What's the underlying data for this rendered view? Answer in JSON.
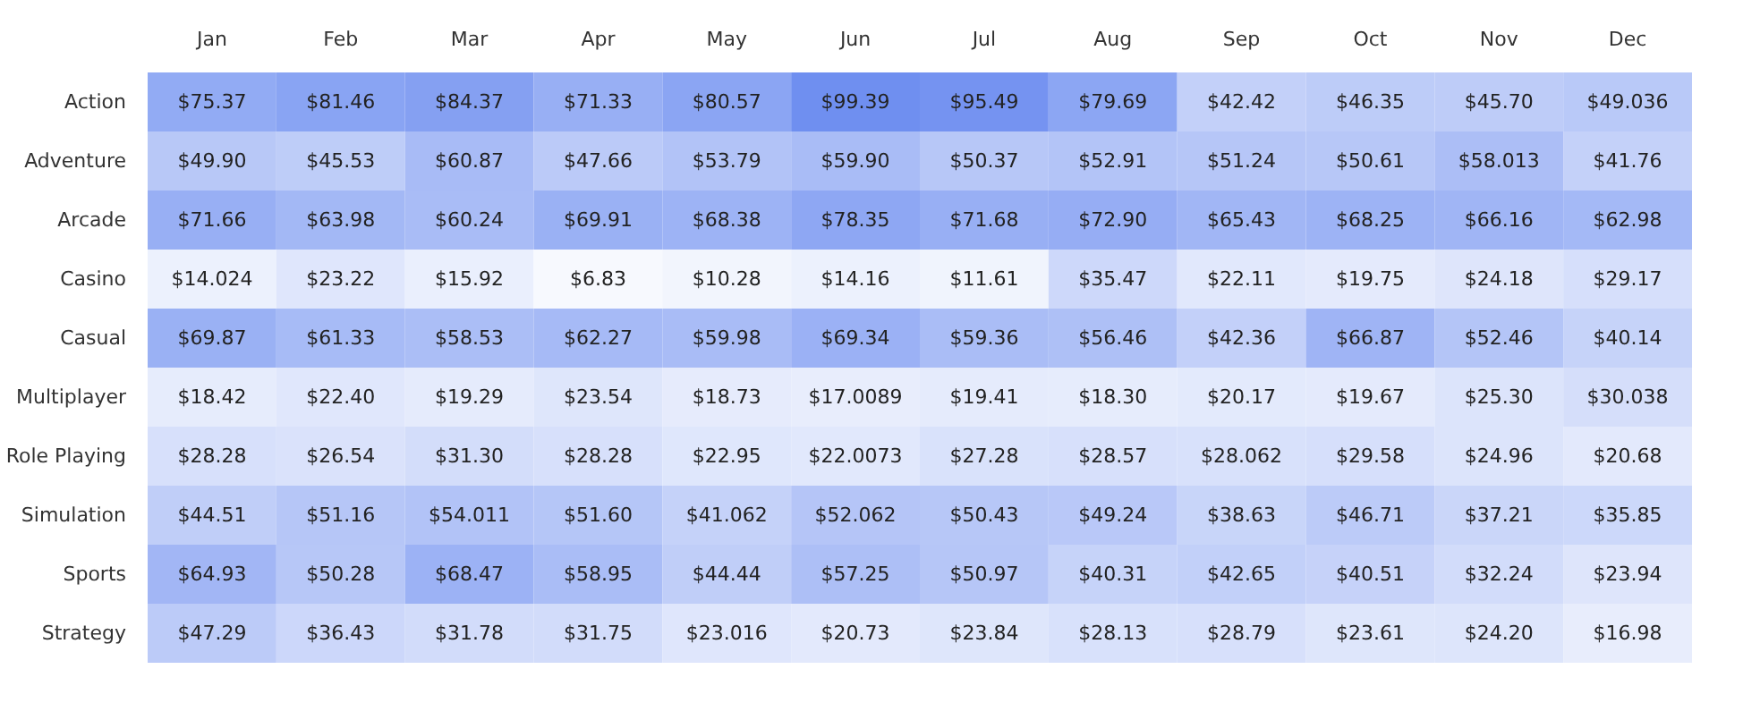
{
  "chart_data": {
    "type": "heatmap",
    "categories": [
      "Jan",
      "Feb",
      "Mar",
      "Apr",
      "May",
      "Jun",
      "Jul",
      "Aug",
      "Sep",
      "Oct",
      "Nov",
      "Dec"
    ],
    "y_categories": [
      "Action",
      "Adventure",
      "Arcade",
      "Casino",
      "Casual",
      "Multiplayer",
      "Role Playing",
      "Simulation",
      "Sports",
      "Strategy"
    ],
    "cells": [
      [
        75.37,
        81.46,
        84.37,
        71.33,
        80.57,
        99.39,
        95.49,
        79.69,
        42.42,
        46.35,
        45.7,
        49.036
      ],
      [
        49.9,
        45.53,
        60.87,
        47.66,
        53.79,
        59.9,
        50.37,
        52.91,
        51.24,
        50.61,
        58.013,
        41.76
      ],
      [
        71.66,
        63.98,
        60.24,
        69.91,
        68.38,
        78.35,
        71.68,
        72.9,
        65.43,
        68.25,
        66.16,
        62.98
      ],
      [
        14.024,
        23.22,
        15.92,
        6.83,
        10.28,
        14.16,
        11.61,
        35.47,
        22.11,
        19.75,
        24.18,
        29.17
      ],
      [
        69.87,
        61.33,
        58.53,
        62.27,
        59.98,
        69.34,
        59.36,
        56.46,
        42.36,
        66.87,
        52.46,
        40.14
      ],
      [
        18.42,
        22.4,
        19.29,
        23.54,
        18.73,
        17.0089,
        19.41,
        18.3,
        20.17,
        19.67,
        25.3,
        30.038
      ],
      [
        28.28,
        26.54,
        31.3,
        28.28,
        22.95,
        22.0073,
        27.28,
        28.57,
        28.062,
        29.58,
        24.96,
        20.68
      ],
      [
        44.51,
        51.16,
        54.011,
        51.6,
        41.062,
        52.062,
        50.43,
        49.24,
        38.63,
        46.71,
        37.21,
        35.85
      ],
      [
        64.93,
        50.28,
        68.47,
        58.95,
        44.44,
        57.25,
        50.97,
        40.31,
        42.65,
        40.51,
        32.24,
        23.94
      ],
      [
        47.29,
        36.43,
        31.78,
        31.75,
        23.016,
        20.73,
        23.84,
        28.13,
        28.79,
        23.61,
        24.2,
        16.98
      ]
    ],
    "cell_labels": [
      [
        "$75.37",
        "$81.46",
        "$84.37",
        "$71.33",
        "$80.57",
        "$99.39",
        "$95.49",
        "$79.69",
        "$42.42",
        "$46.35",
        "$45.70",
        "$49.036"
      ],
      [
        "$49.90",
        "$45.53",
        "$60.87",
        "$47.66",
        "$53.79",
        "$59.90",
        "$50.37",
        "$52.91",
        "$51.24",
        "$50.61",
        "$58.013",
        "$41.76"
      ],
      [
        "$71.66",
        "$63.98",
        "$60.24",
        "$69.91",
        "$68.38",
        "$78.35",
        "$71.68",
        "$72.90",
        "$65.43",
        "$68.25",
        "$66.16",
        "$62.98"
      ],
      [
        "$14.024",
        "$23.22",
        "$15.92",
        "$6.83",
        "$10.28",
        "$14.16",
        "$11.61",
        "$35.47",
        "$22.11",
        "$19.75",
        "$24.18",
        "$29.17"
      ],
      [
        "$69.87",
        "$61.33",
        "$58.53",
        "$62.27",
        "$59.98",
        "$69.34",
        "$59.36",
        "$56.46",
        "$42.36",
        "$66.87",
        "$52.46",
        "$40.14"
      ],
      [
        "$18.42",
        "$22.40",
        "$19.29",
        "$23.54",
        "$18.73",
        "$17.0089",
        "$19.41",
        "$18.30",
        "$20.17",
        "$19.67",
        "$25.30",
        "$30.038"
      ],
      [
        "$28.28",
        "$26.54",
        "$31.30",
        "$28.28",
        "$22.95",
        "$22.0073",
        "$27.28",
        "$28.57",
        "$28.062",
        "$29.58",
        "$24.96",
        "$20.68"
      ],
      [
        "$44.51",
        "$51.16",
        "$54.011",
        "$51.60",
        "$41.062",
        "$52.062",
        "$50.43",
        "$49.24",
        "$38.63",
        "$46.71",
        "$37.21",
        "$35.85"
      ],
      [
        "$64.93",
        "$50.28",
        "$68.47",
        "$58.95",
        "$44.44",
        "$57.25",
        "$50.97",
        "$40.31",
        "$42.65",
        "$40.51",
        "$32.24",
        "$23.94"
      ],
      [
        "$47.29",
        "$36.43",
        "$31.78",
        "$31.75",
        "$23.016",
        "$20.73",
        "$23.84",
        "$28.13",
        "$28.79",
        "$23.61",
        "$24.20",
        "$16.98"
      ]
    ]
  }
}
